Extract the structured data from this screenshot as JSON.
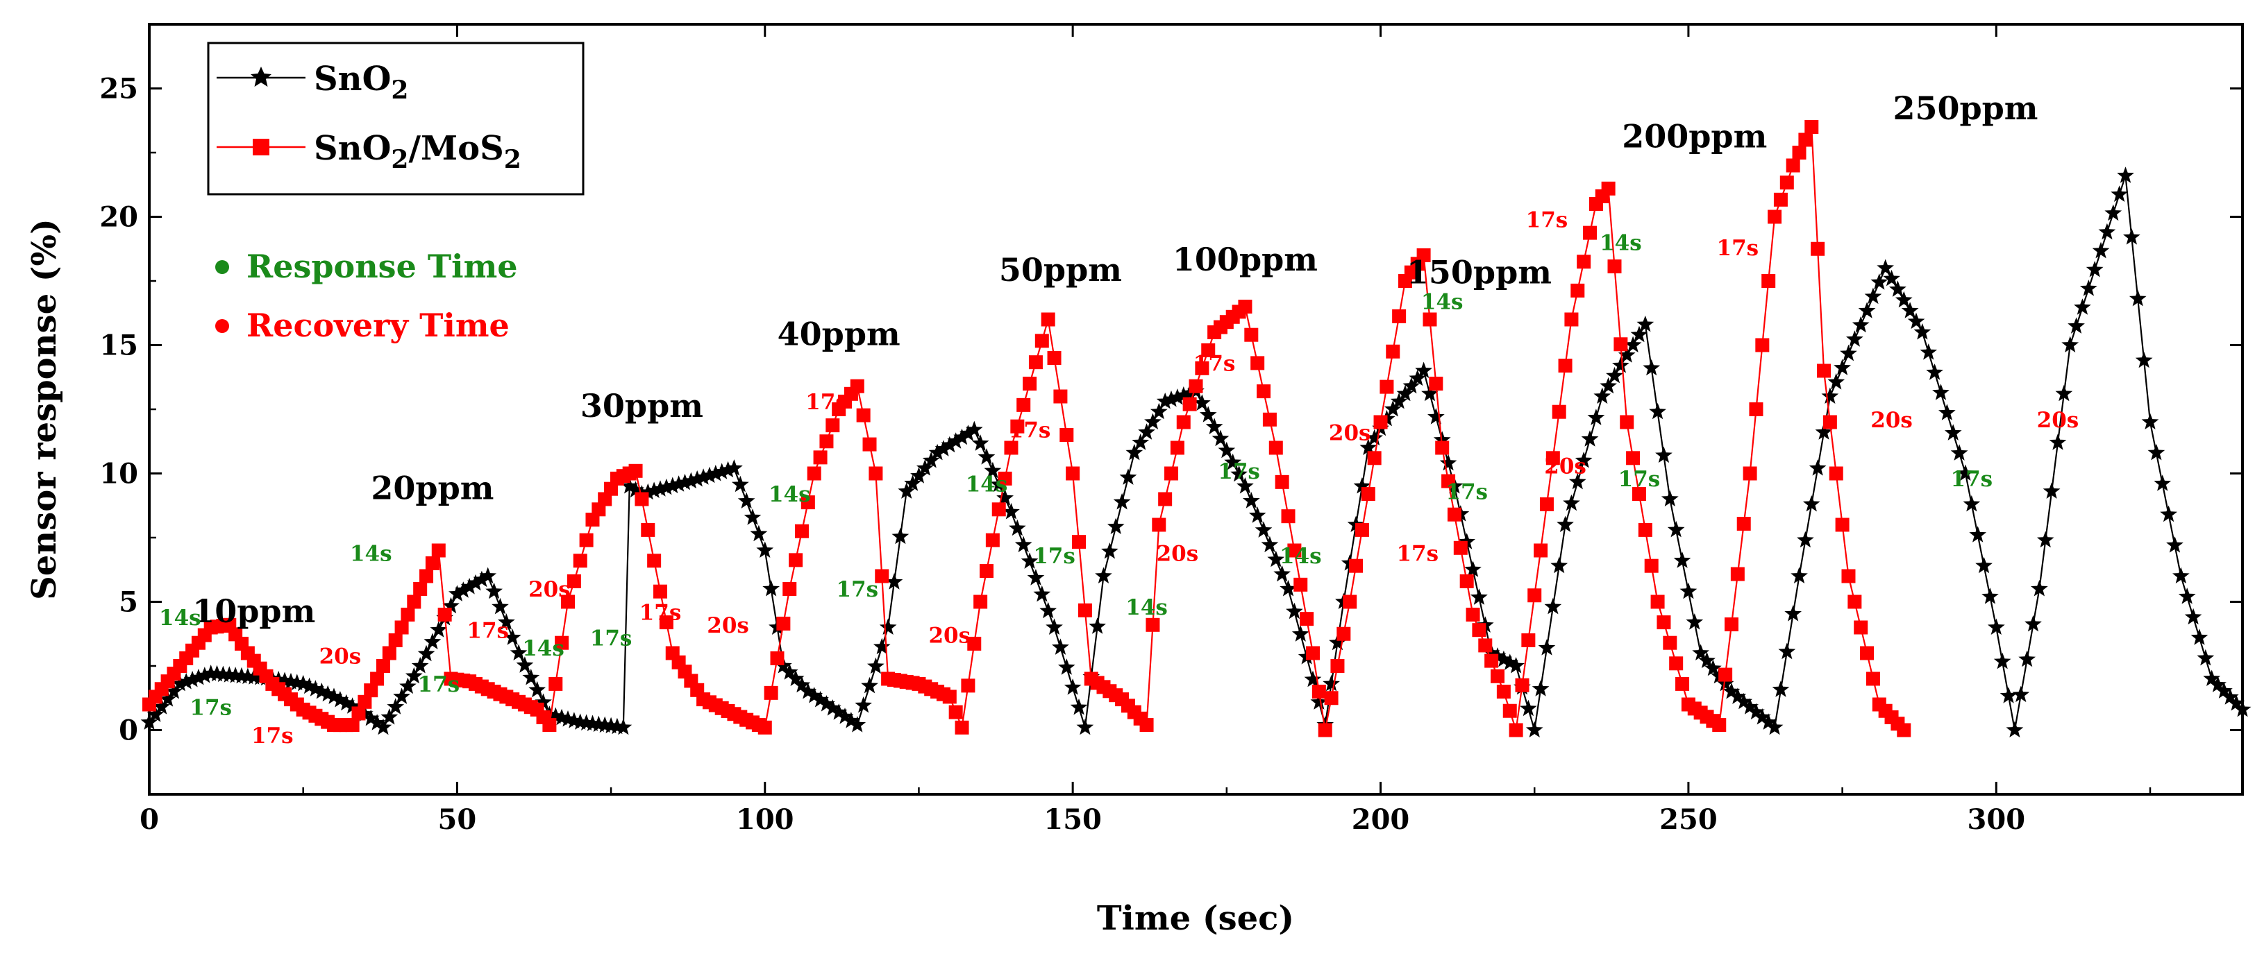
{
  "chart_data": {
    "type": "line",
    "xlabel": "Time (sec)",
    "ylabel": "Sensor response (%)",
    "xlim": [
      0,
      340
    ],
    "ylim": [
      -2.5,
      27.5
    ],
    "x_ticks": [
      0,
      50,
      100,
      150,
      200,
      250,
      300
    ],
    "y_ticks": [
      0,
      5,
      10,
      15,
      20,
      25
    ],
    "grid": false,
    "legend": {
      "position": "top-left",
      "entries": [
        {
          "label": "SnO",
          "sub": "2",
          "series": "SnO2",
          "color": "#000000",
          "marker": "star"
        },
        {
          "label": "SnO",
          "sub": "2",
          "label2": "/MoS",
          "sub2": "2",
          "series": "SnO2/MoS2",
          "color": "#ff0000",
          "marker": "square"
        }
      ]
    },
    "notes": [
      {
        "label": "Response Time",
        "color": "#1a8a1a"
      },
      {
        "label": "Recovery Time",
        "color": "#ff0000"
      }
    ],
    "series": [
      {
        "name": "SnO2",
        "color": "#000000",
        "marker": "star",
        "x": [
          0,
          5,
          10,
          15,
          20,
          25,
          30,
          34,
          38,
          44,
          50,
          55,
          60,
          65,
          70,
          77,
          78,
          80,
          88,
          95,
          100,
          103,
          107,
          115,
          120,
          123,
          128,
          134,
          140,
          147,
          152,
          155,
          160,
          165,
          170,
          178,
          185,
          191,
          194,
          198,
          202,
          207,
          212,
          218,
          222,
          225,
          230,
          236,
          243,
          247,
          252,
          257,
          264,
          268,
          273,
          282,
          288,
          295,
          300,
          303,
          307,
          312,
          321,
          325,
          330,
          335,
          340
        ],
        "y": [
          0.3,
          1.8,
          2.2,
          2.1,
          2.0,
          1.8,
          1.3,
          0.8,
          0.1,
          2.5,
          5.3,
          6.0,
          3.0,
          0.6,
          0.3,
          0.1,
          9.5,
          9.2,
          9.7,
          10.2,
          7.0,
          2.5,
          1.5,
          0.2,
          4.0,
          9.3,
          10.8,
          11.7,
          8.5,
          4.0,
          0.1,
          6.0,
          10.8,
          12.8,
          13.2,
          9.5,
          5.5,
          0.2,
          5.0,
          11.0,
          12.5,
          14.0,
          9.5,
          3.0,
          2.5,
          0.0,
          8.0,
          13.0,
          15.8,
          9.0,
          3.0,
          1.5,
          0.1,
          6.0,
          13.0,
          18.0,
          15.5,
          10.0,
          4.0,
          0.0,
          5.5,
          15.0,
          21.6,
          12.0,
          6.0,
          2.0,
          0.8
        ]
      },
      {
        "name": "SnO2/MoS2",
        "color": "#ff0000",
        "marker": "square",
        "x": [
          0,
          5,
          10,
          13,
          16,
          20,
          25,
          30,
          33,
          37,
          42,
          47,
          49,
          52,
          58,
          63,
          65,
          68,
          72,
          76,
          79,
          80,
          85,
          90,
          97,
          100,
          104,
          108,
          112,
          115,
          118,
          120,
          125,
          130,
          132,
          135,
          140,
          146,
          150,
          153,
          158,
          162,
          164,
          168,
          173,
          178,
          183,
          189,
          191,
          195,
          200,
          204,
          207,
          210,
          215,
          220,
          222,
          226,
          231,
          235,
          237,
          240,
          245,
          250,
          255,
          260,
          264,
          267,
          270,
          272,
          276,
          281,
          285
        ],
        "y": [
          1.0,
          2.5,
          4.0,
          4.1,
          3.0,
          1.8,
          0.8,
          0.2,
          0.2,
          2.0,
          4.5,
          7.0,
          2.0,
          1.9,
          1.3,
          0.8,
          0.2,
          5.0,
          8.2,
          9.8,
          10.1,
          9.0,
          3.0,
          1.2,
          0.4,
          0.1,
          5.5,
          10.0,
          12.5,
          13.4,
          10.0,
          2.0,
          1.8,
          1.3,
          0.1,
          5.0,
          11.0,
          16.0,
          10.0,
          2.0,
          1.2,
          0.2,
          8.0,
          12.0,
          15.5,
          16.5,
          11.0,
          3.0,
          0.0,
          5.0,
          12.0,
          17.5,
          18.5,
          11.0,
          4.5,
          1.5,
          0.0,
          7.0,
          16.0,
          20.5,
          21.1,
          12.0,
          5.0,
          1.0,
          0.2,
          10.0,
          20.0,
          22.0,
          23.5,
          14.0,
          6.0,
          1.0,
          0.0
        ]
      }
    ],
    "annotations": [
      {
        "text": "10ppm",
        "x": 17,
        "y": 4.2,
        "kind": "ppm"
      },
      {
        "text": "20ppm",
        "x": 46,
        "y": 9.0,
        "kind": "ppm"
      },
      {
        "text": "30ppm",
        "x": 80,
        "y": 12.2,
        "kind": "ppm"
      },
      {
        "text": "40ppm",
        "x": 112,
        "y": 15.0,
        "kind": "ppm"
      },
      {
        "text": "50ppm",
        "x": 148,
        "y": 17.5,
        "kind": "ppm"
      },
      {
        "text": "100ppm",
        "x": 178,
        "y": 17.9,
        "kind": "ppm"
      },
      {
        "text": "150ppm",
        "x": 216,
        "y": 17.4,
        "kind": "ppm"
      },
      {
        "text": "200ppm",
        "x": 251,
        "y": 22.7,
        "kind": "ppm"
      },
      {
        "text": "250ppm",
        "x": 295,
        "y": 23.8,
        "kind": "ppm"
      },
      {
        "text": "14s",
        "x": 5,
        "y": 4.1,
        "kind": "response"
      },
      {
        "text": "17s",
        "x": 10,
        "y": 0.6,
        "kind": "response"
      },
      {
        "text": "17s",
        "x": 20,
        "y": -0.5,
        "kind": "recovery"
      },
      {
        "text": "20s",
        "x": 31,
        "y": 2.6,
        "kind": "recovery"
      },
      {
        "text": "14s",
        "x": 36,
        "y": 6.6,
        "kind": "response"
      },
      {
        "text": "17s",
        "x": 47,
        "y": 1.5,
        "kind": "response"
      },
      {
        "text": "17s",
        "x": 55,
        "y": 3.6,
        "kind": "recovery"
      },
      {
        "text": "20s",
        "x": 65,
        "y": 5.2,
        "kind": "recovery"
      },
      {
        "text": "14s",
        "x": 64,
        "y": 2.9,
        "kind": "response"
      },
      {
        "text": "17s",
        "x": 75,
        "y": 3.3,
        "kind": "response"
      },
      {
        "text": "17s",
        "x": 83,
        "y": 4.3,
        "kind": "recovery"
      },
      {
        "text": "20s",
        "x": 94,
        "y": 3.8,
        "kind": "recovery"
      },
      {
        "text": "14s",
        "x": 104,
        "y": 8.9,
        "kind": "response"
      },
      {
        "text": "17s",
        "x": 110,
        "y": 12.5,
        "kind": "recovery"
      },
      {
        "text": "17s",
        "x": 115,
        "y": 5.2,
        "kind": "response"
      },
      {
        "text": "20s",
        "x": 130,
        "y": 3.4,
        "kind": "recovery"
      },
      {
        "text": "14s",
        "x": 136,
        "y": 9.3,
        "kind": "response"
      },
      {
        "text": "17s",
        "x": 143,
        "y": 11.4,
        "kind": "recovery"
      },
      {
        "text": "17s",
        "x": 147,
        "y": 6.5,
        "kind": "response"
      },
      {
        "text": "20s",
        "x": 167,
        "y": 6.6,
        "kind": "recovery"
      },
      {
        "text": "14s",
        "x": 162,
        "y": 4.5,
        "kind": "response"
      },
      {
        "text": "17s",
        "x": 173,
        "y": 14.0,
        "kind": "recovery"
      },
      {
        "text": "17s",
        "x": 177,
        "y": 9.8,
        "kind": "response"
      },
      {
        "text": "14s",
        "x": 187,
        "y": 6.5,
        "kind": "response"
      },
      {
        "text": "20s",
        "x": 195,
        "y": 11.3,
        "kind": "recovery"
      },
      {
        "text": "17s",
        "x": 206,
        "y": 6.6,
        "kind": "recovery"
      },
      {
        "text": "14s",
        "x": 210,
        "y": 16.4,
        "kind": "response"
      },
      {
        "text": "17s",
        "x": 214,
        "y": 9.0,
        "kind": "response"
      },
      {
        "text": "20s",
        "x": 230,
        "y": 10.0,
        "kind": "recovery"
      },
      {
        "text": "17s",
        "x": 242,
        "y": 9.5,
        "kind": "response"
      },
      {
        "text": "17s",
        "x": 227,
        "y": 19.6,
        "kind": "recovery"
      },
      {
        "text": "14s",
        "x": 239,
        "y": 18.7,
        "kind": "response"
      },
      {
        "text": "17s",
        "x": 258,
        "y": 18.5,
        "kind": "recovery"
      },
      {
        "text": "20s",
        "x": 283,
        "y": 11.8,
        "kind": "recovery"
      },
      {
        "text": "17s",
        "x": 296,
        "y": 9.5,
        "kind": "response"
      },
      {
        "text": "20s",
        "x": 310,
        "y": 11.8,
        "kind": "recovery"
      }
    ]
  }
}
